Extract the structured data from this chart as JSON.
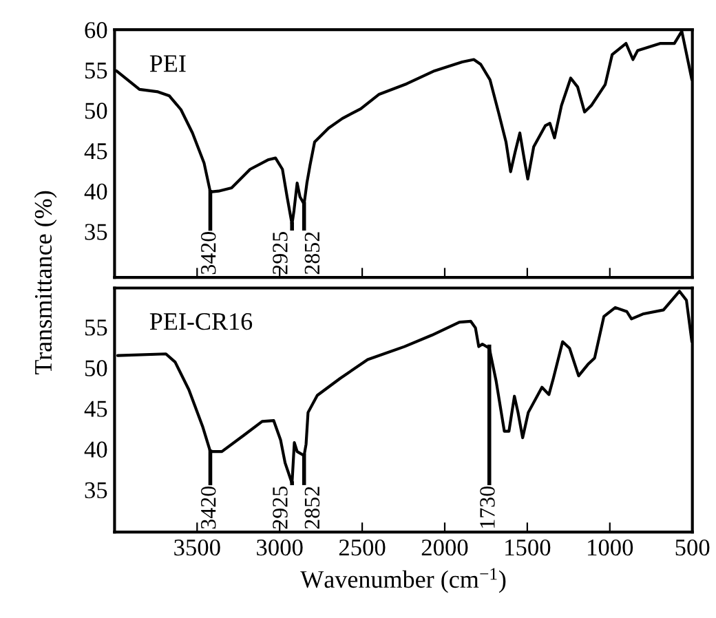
{
  "chart_data": [
    {
      "type": "line",
      "ylabel": "Transmittance (%)",
      "xlim": [
        4000,
        500
      ],
      "ylim": [
        29.3,
        60
      ],
      "xticks": [
        3500,
        3000,
        2500,
        2000,
        1500,
        1000,
        500
      ],
      "yticks": [
        35,
        40,
        45,
        50,
        55,
        60
      ],
      "tick_labels": "y",
      "grid": false,
      "legend": false,
      "x": [
        3989,
        3849,
        3737,
        3668,
        3598,
        3528,
        3458,
        3420,
        3370,
        3291,
        3179,
        3067,
        3025,
        2983,
        2955,
        2925,
        2913,
        2894,
        2877,
        2852,
        2835,
        2816,
        2788,
        2704,
        2620,
        2509,
        2397,
        2230,
        2062,
        1894,
        1824,
        1782,
        1726,
        1671,
        1629,
        1601,
        1573,
        1545,
        1517,
        1497,
        1461,
        1391,
        1363,
        1335,
        1293,
        1237,
        1195,
        1153,
        1112,
        1028,
        986,
        902,
        860,
        832,
        693,
        609,
        564,
        503
      ],
      "series": [
        {
          "name": "PEI",
          "color": "#000000",
          "values": [
            54.9,
            52.6,
            52.3,
            51.8,
            50.1,
            47.2,
            43.5,
            39.9,
            40.0,
            40.4,
            42.7,
            43.9,
            44.1,
            42.7,
            39.3,
            35.9,
            37.6,
            41.0,
            39.3,
            38.4,
            41.0,
            43.2,
            46.1,
            47.8,
            49.0,
            50.2,
            52.0,
            53.3,
            54.9,
            56.0,
            56.3,
            55.7,
            53.8,
            49.5,
            46.1,
            42.4,
            44.9,
            47.2,
            43.8,
            41.5,
            45.5,
            48.1,
            48.4,
            46.6,
            50.6,
            54.0,
            52.9,
            49.8,
            50.6,
            53.2,
            56.9,
            58.3,
            56.3,
            57.4,
            58.3,
            58.3,
            59.8,
            53.8
          ]
        }
      ],
      "annotations": [
        {
          "text": "3420",
          "x": 3420,
          "y": 39.9
        },
        {
          "text": "2925",
          "x": 2925,
          "y": 35.9
        },
        {
          "text": "2852",
          "x": 2852,
          "y": 38.4
        }
      ]
    },
    {
      "type": "line",
      "xlabel": "Wavenumber (cm$^{−1}$)",
      "xlim": [
        4000,
        500
      ],
      "ylim": [
        29.8,
        59.8
      ],
      "xticks": [
        3500,
        3000,
        2500,
        2000,
        1500,
        1000,
        500
      ],
      "yticks": [
        35,
        40,
        45,
        50,
        55
      ],
      "grid": false,
      "legend": false,
      "x": [
        3981,
        3689,
        3633,
        3550,
        3467,
        3420,
        3350,
        3217,
        3106,
        3036,
        2994,
        2967,
        2925,
        2911,
        2894,
        2852,
        2840,
        2828,
        2772,
        2633,
        2467,
        2244,
        2078,
        1911,
        1842,
        1814,
        1794,
        1772,
        1730,
        1689,
        1639,
        1611,
        1578,
        1556,
        1528,
        1494,
        1411,
        1369,
        1342,
        1286,
        1244,
        1189,
        1133,
        1092,
        1036,
        967,
        897,
        869,
        800,
        675,
        578,
        536,
        503
      ],
      "series": [
        {
          "name": "PEI-CR16",
          "color": "#000000",
          "values": [
            51.5,
            51.7,
            50.7,
            47.3,
            42.8,
            39.7,
            39.7,
            41.7,
            43.4,
            43.5,
            41.1,
            38.3,
            35.8,
            40.8,
            39.7,
            39.2,
            40.6,
            44.5,
            46.6,
            48.7,
            51.0,
            52.6,
            54.0,
            55.6,
            55.7,
            54.9,
            52.6,
            52.9,
            52.4,
            48.4,
            42.2,
            42.2,
            46.5,
            44.5,
            41.4,
            44.5,
            47.6,
            46.7,
            48.7,
            53.2,
            52.4,
            49.0,
            50.4,
            51.2,
            56.3,
            57.4,
            56.9,
            56.0,
            56.6,
            57.1,
            59.4,
            58.3,
            53.2
          ]
        }
      ],
      "annotations": [
        {
          "text": "3420",
          "x": 3420,
          "y": 39.7
        },
        {
          "text": "2925",
          "x": 2925,
          "y": 35.8
        },
        {
          "text": "2852",
          "x": 2852,
          "y": 39.2
        },
        {
          "text": "1730",
          "x": 1730,
          "y": 52.6
        }
      ]
    }
  ]
}
